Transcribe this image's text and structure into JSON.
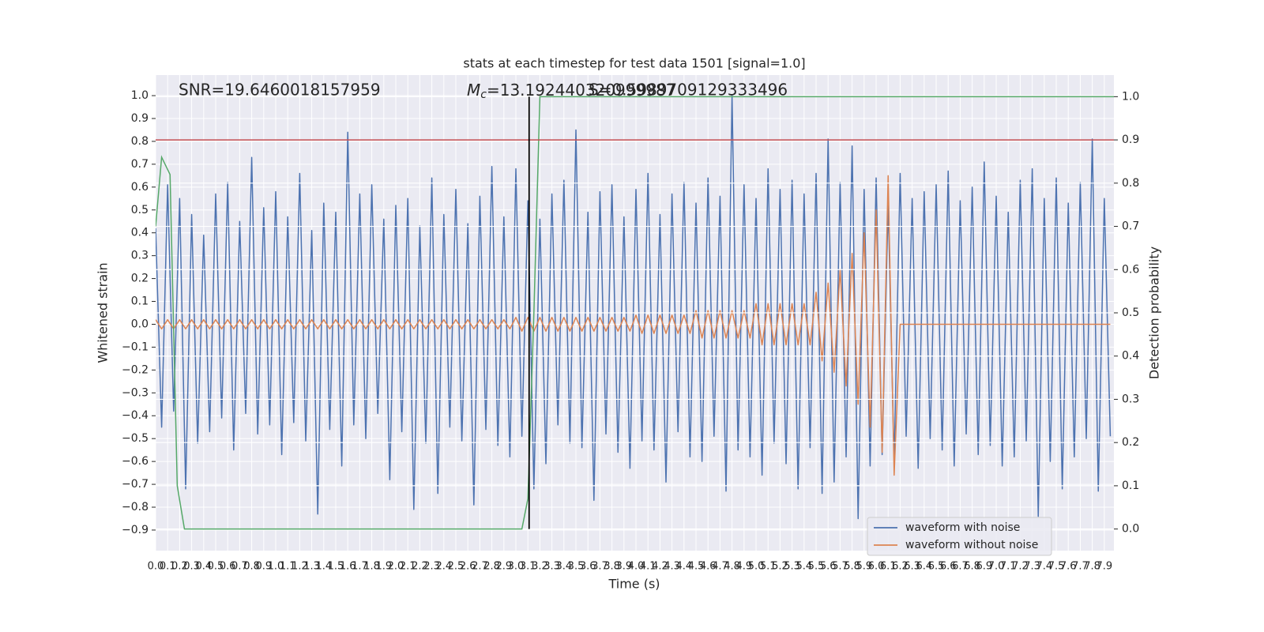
{
  "chart_data": {
    "type": "line",
    "title": "stats at each timestep for test data 1501 [signal=1.0]",
    "xlabel": "Time (s)",
    "ylabel": "Whitened strain",
    "y2label": "Detection probability",
    "annotations": [
      {
        "text": "SNR=19.6460018157959"
      },
      {
        "symbol": "M",
        "subscript": "c",
        "text": "=13.192440320999987"
      },
      {
        "text": "S=0.5989709129333496"
      }
    ],
    "xlim": [
      0,
      7.98
    ],
    "ylim": [
      -0.99,
      1.09
    ],
    "y2lim": [
      -0.05,
      1.05
    ],
    "xticks": [
      {
        "value": 0,
        "label": "0.0"
      },
      0.1,
      0.2,
      0.3,
      0.4,
      0.5,
      0.6,
      0.7,
      0.8,
      0.9,
      {
        "value": 1,
        "label": "1.0"
      },
      1.1,
      1.2,
      1.3,
      1.4,
      1.5,
      1.6,
      1.7,
      1.8,
      1.9,
      {
        "value": 2,
        "label": "2.0"
      },
      2.1,
      2.2,
      2.3,
      2.4,
      2.5,
      2.6,
      2.7,
      2.8,
      2.9,
      {
        "value": 3,
        "label": "3.0"
      },
      3.1,
      3.2,
      3.3,
      3.4,
      3.5,
      3.6,
      3.7,
      3.8,
      3.9,
      {
        "value": 4,
        "label": "4.0"
      },
      4.1,
      4.2,
      4.3,
      4.4,
      4.5,
      4.6,
      4.7,
      4.8,
      4.9,
      {
        "value": 5,
        "label": "5.0"
      },
      5.1,
      5.2,
      5.3,
      5.4,
      5.5,
      5.6,
      5.7,
      5.8,
      5.9,
      {
        "value": 6,
        "label": "6.0"
      },
      6.1,
      6.2,
      6.3,
      6.4,
      6.5,
      6.6,
      6.7,
      6.8,
      6.9,
      {
        "value": 7,
        "label": "7.0"
      },
      7.1,
      7.2,
      7.3,
      7.4,
      7.5,
      7.6,
      7.7,
      7.8,
      7.9
    ],
    "yticks": [
      {
        "value": -0.9,
        "label": "−0.9"
      },
      {
        "value": -0.8,
        "label": "−0.8"
      },
      {
        "value": -0.7,
        "label": "−0.7"
      },
      {
        "value": -0.6,
        "label": "−0.6"
      },
      {
        "value": -0.5,
        "label": "−0.5"
      },
      {
        "value": -0.4,
        "label": "−0.4"
      },
      {
        "value": -0.3,
        "label": "−0.3"
      },
      {
        "value": -0.2,
        "label": "−0.2"
      },
      {
        "value": -0.1,
        "label": "−0.1"
      },
      {
        "value": 0,
        "label": "0.0"
      },
      0.1,
      0.2,
      0.3,
      0.4,
      0.5,
      0.6,
      0.7,
      0.8,
      0.9,
      {
        "value": 1,
        "label": "1.0"
      }
    ],
    "y2ticks": [
      {
        "value": 0,
        "label": "0.0"
      },
      0.1,
      0.2,
      0.3,
      0.4,
      0.5,
      0.6,
      0.7,
      0.8,
      0.9,
      {
        "value": 1,
        "label": "1.0"
      }
    ],
    "grid": true,
    "legend": "lower right",
    "x": [
      0,
      0.05,
      0.1,
      0.15,
      0.2,
      0.25,
      0.3,
      0.35,
      0.4,
      0.45,
      0.5,
      0.55,
      0.6,
      0.65,
      0.7,
      0.75,
      0.8,
      0.85,
      0.9,
      0.95,
      1,
      1.05,
      1.1,
      1.15,
      1.2,
      1.25,
      1.3,
      1.35,
      1.4,
      1.45,
      1.5,
      1.55,
      1.6,
      1.65,
      1.7,
      1.75,
      1.8,
      1.85,
      1.9,
      1.95,
      2,
      2.05,
      2.1,
      2.15,
      2.2,
      2.25,
      2.3,
      2.35,
      2.4,
      2.45,
      2.5,
      2.55,
      2.6,
      2.65,
      2.7,
      2.75,
      2.8,
      2.85,
      2.9,
      2.95,
      3,
      3.05,
      3.1,
      3.15,
      3.2,
      3.25,
      3.3,
      3.35,
      3.4,
      3.45,
      3.5,
      3.55,
      3.6,
      3.65,
      3.7,
      3.75,
      3.8,
      3.85,
      3.9,
      3.95,
      4,
      4.05,
      4.1,
      4.15,
      4.2,
      4.25,
      4.3,
      4.35,
      4.4,
      4.45,
      4.5,
      4.55,
      4.6,
      4.65,
      4.7,
      4.75,
      4.8,
      4.85,
      4.9,
      4.95,
      5,
      5.05,
      5.1,
      5.15,
      5.2,
      5.25,
      5.3,
      5.35,
      5.4,
      5.45,
      5.5,
      5.55,
      5.6,
      5.65,
      5.7,
      5.75,
      5.8,
      5.85,
      5.9,
      5.95,
      6,
      6.05,
      6.1,
      6.15,
      6.2,
      6.25,
      6.3,
      6.35,
      6.4,
      6.45,
      6.5,
      6.55,
      6.6,
      6.65,
      6.7,
      6.75,
      6.8,
      6.85,
      6.9,
      6.95,
      7,
      7.05,
      7.1,
      7.15,
      7.2,
      7.25,
      7.3,
      7.35,
      7.4,
      7.45,
      7.5,
      7.55,
      7.6,
      7.65,
      7.7,
      7.75,
      7.8,
      7.85,
      7.9,
      7.95
    ],
    "series": [
      {
        "name": "waveform with noise",
        "color": "#4c72b0",
        "values": [
          0.42,
          -0.45,
          0.61,
          -0.38,
          0.55,
          -0.72,
          0.48,
          -0.52,
          0.39,
          -0.47,
          0.57,
          -0.41,
          0.62,
          -0.55,
          0.45,
          -0.39,
          0.73,
          -0.48,
          0.51,
          -0.44,
          0.58,
          -0.57,
          0.47,
          -0.43,
          0.66,
          -0.51,
          0.41,
          -0.83,
          0.53,
          -0.46,
          0.49,
          -0.62,
          0.84,
          -0.44,
          0.57,
          -0.5,
          0.61,
          -0.39,
          0.46,
          -0.68,
          0.52,
          -0.47,
          0.55,
          -0.81,
          0.43,
          -0.52,
          0.64,
          -0.74,
          0.48,
          -0.45,
          0.59,
          -0.51,
          0.44,
          -0.79,
          0.56,
          -0.46,
          0.69,
          -0.53,
          0.47,
          -0.58,
          0.68,
          -0.49,
          0.54,
          -0.72,
          0.46,
          -0.61,
          0.57,
          -0.44,
          0.63,
          -0.52,
          0.85,
          -0.54,
          0.49,
          -0.77,
          0.58,
          -0.48,
          0.61,
          -0.56,
          0.47,
          -0.63,
          0.59,
          -0.51,
          0.66,
          -0.55,
          0.48,
          -0.69,
          0.57,
          -0.47,
          0.62,
          -0.58,
          0.53,
          -0.6,
          0.64,
          -0.49,
          0.56,
          -0.73,
          1.0,
          -0.55,
          0.61,
          -0.58,
          0.55,
          -0.66,
          0.68,
          -0.52,
          0.59,
          -0.61,
          0.63,
          -0.72,
          0.57,
          -0.54,
          0.66,
          -0.74,
          0.81,
          -0.69,
          0.62,
          -0.58,
          0.78,
          -0.85,
          0.59,
          -0.62,
          0.64,
          -0.57,
          0.52,
          -0.6,
          0.66,
          -0.49,
          0.55,
          -0.63,
          0.58,
          -0.5,
          0.61,
          -0.55,
          0.67,
          -0.62,
          0.54,
          -0.48,
          0.6,
          -0.57,
          0.71,
          -0.53,
          0.56,
          -0.62,
          0.49,
          -0.58,
          0.63,
          -0.51,
          0.68,
          -0.84,
          0.55,
          -0.6,
          0.64,
          -0.72,
          0.53,
          -0.58,
          0.62,
          -0.5,
          0.81,
          -0.73,
          0.55,
          -0.49
        ]
      },
      {
        "name": "waveform without noise",
        "color": "#dd8452",
        "values": [
          0.02,
          -0.02,
          0.02,
          -0.02,
          0.02,
          -0.02,
          0.02,
          -0.02,
          0.02,
          -0.02,
          0.02,
          -0.02,
          0.02,
          -0.02,
          0.02,
          -0.02,
          0.02,
          -0.02,
          0.02,
          -0.02,
          0.02,
          -0.02,
          0.02,
          -0.02,
          0.02,
          -0.02,
          0.02,
          -0.02,
          0.02,
          -0.02,
          0.02,
          -0.02,
          0.02,
          -0.02,
          0.02,
          -0.02,
          0.02,
          -0.02,
          0.02,
          -0.02,
          0.02,
          -0.02,
          0.02,
          -0.02,
          0.02,
          -0.02,
          0.02,
          -0.02,
          0.02,
          -0.02,
          0.02,
          -0.02,
          0.02,
          -0.02,
          0.02,
          -0.02,
          0.02,
          -0.02,
          0.02,
          -0.02,
          0.03,
          -0.03,
          0.03,
          -0.03,
          0.03,
          -0.03,
          0.03,
          -0.03,
          0.03,
          -0.03,
          0.03,
          -0.03,
          0.03,
          -0.03,
          0.03,
          -0.03,
          0.03,
          -0.03,
          0.03,
          -0.03,
          0.04,
          -0.04,
          0.04,
          -0.04,
          0.04,
          -0.04,
          0.04,
          -0.04,
          0.04,
          -0.04,
          0.06,
          -0.06,
          0.06,
          -0.06,
          0.06,
          -0.06,
          0.06,
          -0.06,
          0.06,
          -0.06,
          0.09,
          -0.09,
          0.09,
          -0.09,
          0.09,
          -0.09,
          0.09,
          -0.09,
          0.09,
          -0.09,
          0.14,
          -0.16,
          0.18,
          -0.21,
          0.24,
          -0.27,
          0.31,
          -0.35,
          0.4,
          -0.45,
          0.5,
          -0.56,
          0.65,
          -0.66,
          0,
          0,
          0,
          0,
          0,
          0,
          0,
          0,
          0,
          0,
          0,
          0,
          0,
          0,
          0,
          0,
          0,
          0,
          0,
          0,
          0,
          0,
          0,
          0,
          0,
          0,
          0,
          0,
          0,
          0,
          0,
          0,
          0,
          0,
          0,
          0
        ]
      }
    ],
    "lines": [
      {
        "axis": "y2",
        "color": "#55a868",
        "x": [
          0,
          0.05,
          0.12,
          0.18,
          0.24,
          3.05,
          3.1,
          3.15,
          3.2,
          7.98
        ],
        "values": [
          0.7,
          0.86,
          0.82,
          0.1,
          0.0,
          0.0,
          0.07,
          0.5,
          1.0,
          1.0
        ]
      }
    ],
    "hlines": [
      {
        "axis": "y2",
        "value": 0.9,
        "color": "#c44e52"
      }
    ],
    "vlines": [
      {
        "axis": "y2",
        "value": 3.11,
        "range": [
          0,
          1
        ],
        "color": "#000000"
      }
    ]
  }
}
